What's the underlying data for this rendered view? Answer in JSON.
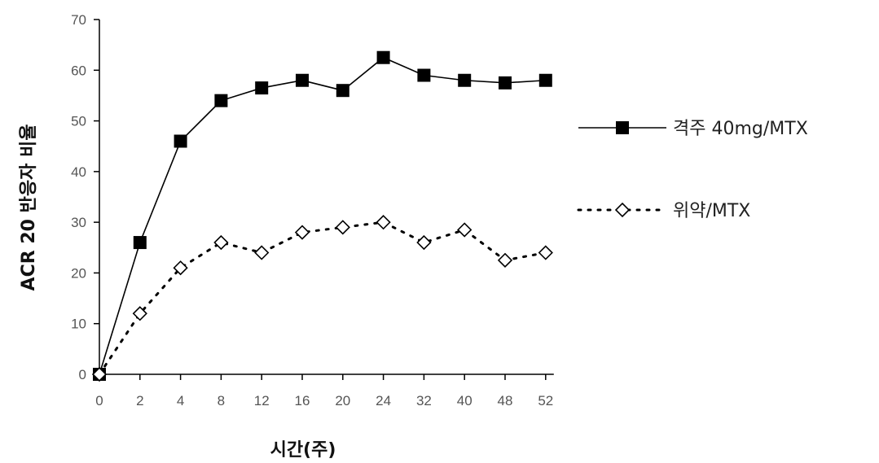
{
  "chart_data": {
    "type": "line",
    "categories": [
      "0",
      "2",
      "4",
      "8",
      "12",
      "16",
      "20",
      "24",
      "32",
      "40",
      "48",
      "52"
    ],
    "xlabel": "시간(주)",
    "ylabel": "ACR 20 반응자 비율",
    "ylim": [
      0,
      70
    ],
    "yticks": [
      0,
      10,
      20,
      30,
      40,
      50,
      60,
      70
    ],
    "grid": false,
    "legend_position": "right",
    "series": [
      {
        "name": "격주 40mg/MTX",
        "marker": "filled-square",
        "line": "solid",
        "color": "#000000",
        "values": [
          0,
          26,
          46,
          54,
          56.5,
          58,
          56,
          62.5,
          59,
          58,
          57.5,
          58
        ]
      },
      {
        "name": "위약/MTX",
        "marker": "open-diamond",
        "line": "dotted",
        "color": "#000000",
        "values": [
          0,
          12,
          21,
          26,
          24,
          28,
          29,
          30,
          26,
          28.5,
          22.5,
          24
        ]
      }
    ]
  }
}
